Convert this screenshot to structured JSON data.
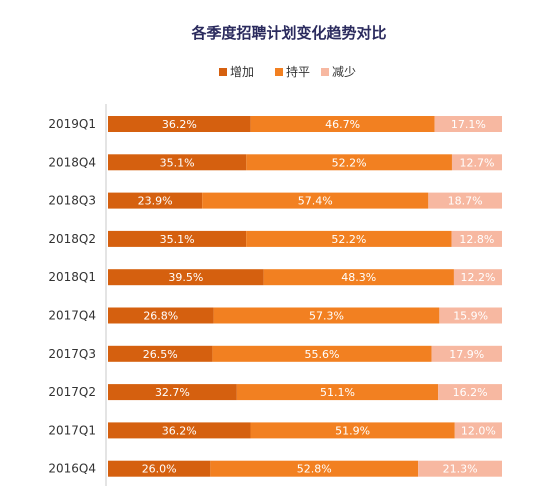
{
  "chart_data": {
    "type": "bar",
    "orientation": "horizontal",
    "stacked": true,
    "percent": true,
    "title": "各季度招聘计划变化趋势对比",
    "legend_position": "top",
    "grid": false,
    "xlim": [
      0,
      100
    ],
    "categories": [
      "2019Q1",
      "2018Q4",
      "2018Q3",
      "2018Q2",
      "2018Q1",
      "2017Q4",
      "2017Q3",
      "2017Q2",
      "2017Q1",
      "2016Q4"
    ],
    "series": [
      {
        "name": "增加",
        "color": "#d5600f",
        "values": [
          36.2,
          35.1,
          23.9,
          35.1,
          39.5,
          26.8,
          26.5,
          32.7,
          36.2,
          26.0
        ],
        "labels": [
          "36.2%",
          "35.1%",
          "23.9%",
          "35.1%",
          "39.5%",
          "26.8%",
          "26.5%",
          "32.7%",
          "36.2%",
          "26.0%"
        ]
      },
      {
        "name": "持平",
        "color": "#f28021",
        "values": [
          46.7,
          52.2,
          57.4,
          52.2,
          48.3,
          57.3,
          55.6,
          51.1,
          51.9,
          52.8
        ],
        "labels": [
          "46.7%",
          "52.2%",
          "57.4%",
          "52.2%",
          "48.3%",
          "57.3%",
          "55.6%",
          "51.1%",
          "51.9%",
          "52.8%"
        ]
      },
      {
        "name": "减少",
        "color": "#f7b8a1",
        "values": [
          17.1,
          12.7,
          18.7,
          12.8,
          12.2,
          15.9,
          17.9,
          16.2,
          12.0,
          21.3
        ],
        "labels": [
          "17.1%",
          "12.7%",
          "18.7%",
          "12.8%",
          "12.2%",
          "15.9%",
          "17.9%",
          "16.2%",
          "12.0%",
          "21.3%"
        ]
      }
    ]
  },
  "colors": {
    "title": "#2b2b5e",
    "axis_line": "#c8c8c8"
  }
}
